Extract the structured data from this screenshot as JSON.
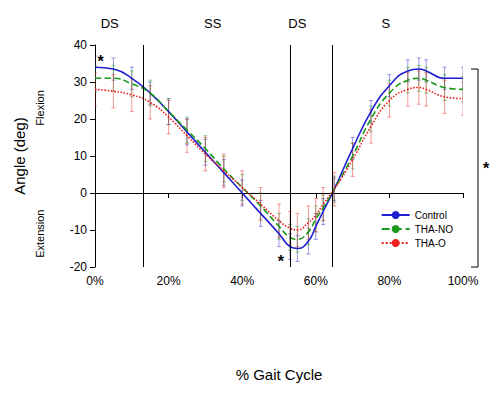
{
  "chart_data": {
    "type": "line",
    "x_label": "% Gait Cycle",
    "y_label": "Angle (deg)",
    "x": [
      0,
      5,
      10,
      15,
      20,
      25,
      30,
      35,
      40,
      45,
      50,
      53,
      55,
      58,
      60,
      62,
      65,
      70,
      75,
      80,
      85,
      88,
      90,
      95,
      100
    ],
    "series": [
      {
        "name": "Control",
        "color": "#1f1fd0",
        "line_style": "solid",
        "values": [
          34,
          33.5,
          31,
          27,
          22,
          16.5,
          11,
          5.5,
          0,
          -5.5,
          -11,
          -14.5,
          -15,
          -13,
          -9,
          -5,
          1,
          12,
          22,
          29,
          33,
          33.5,
          33,
          31,
          31
        ],
        "errors": [
          3,
          3,
          3,
          3,
          3.5,
          3.5,
          3.5,
          3.5,
          3.5,
          3.5,
          3.5,
          3.5,
          3.5,
          3.5,
          3.5,
          3.5,
          3,
          3,
          3,
          3,
          3,
          3,
          3,
          3,
          3
        ]
      },
      {
        "name": "THA-NO",
        "color": "#1a9a1a",
        "line_style": "dashed",
        "values": [
          31,
          31,
          29.5,
          27,
          22,
          17,
          12,
          6.5,
          1.5,
          -3.5,
          -9,
          -12,
          -12.5,
          -10.5,
          -7,
          -4,
          1,
          10,
          20,
          27,
          30.5,
          31,
          30.5,
          28.5,
          28
        ],
        "errors": [
          3.5,
          3.5,
          3.5,
          3.5,
          3.5,
          3.5,
          3.5,
          3.5,
          3.5,
          3.5,
          3.5,
          3.5,
          3.5,
          3.5,
          3.5,
          3.5,
          3.5,
          3.5,
          3.5,
          3.5,
          3.5,
          3.5,
          3.5,
          3.5,
          3.5
        ]
      },
      {
        "name": "THA-O",
        "color": "#ee2020",
        "line_style": "dotted",
        "values": [
          28,
          27.5,
          26.5,
          24.5,
          20.5,
          15.5,
          10.5,
          6,
          1.5,
          -3,
          -7.5,
          -9.5,
          -10,
          -8,
          -6,
          -3,
          1,
          9,
          18,
          25,
          28,
          28.5,
          28,
          26,
          25.5
        ],
        "errors": [
          4.5,
          4.5,
          4.5,
          4.5,
          4.5,
          4.5,
          4.5,
          4.5,
          4.5,
          4.5,
          4.5,
          4.5,
          4.5,
          4.5,
          4.5,
          4.5,
          4.5,
          4.5,
          4.5,
          4.5,
          4.5,
          4.5,
          4.5,
          4.5,
          4.5
        ]
      }
    ],
    "xlim": [
      0,
      100
    ],
    "xticks": [
      {
        "value": 0,
        "label": "0%"
      },
      {
        "value": 20,
        "label": "20%"
      },
      {
        "value": 40,
        "label": "40%"
      },
      {
        "value": 60,
        "label": "60%"
      },
      {
        "value": 80,
        "label": "80%"
      },
      {
        "value": 100,
        "label": "100%"
      }
    ],
    "ylim": [
      -20,
      40
    ],
    "yticks": [
      -20,
      -10,
      0,
      10,
      20,
      30,
      40
    ],
    "grid": false,
    "legend": "lower right",
    "phase_boundaries": [
      13,
      53,
      64.5
    ],
    "phases": [
      {
        "label": "DS",
        "x": 4
      },
      {
        "label": "SS",
        "x": 32
      },
      {
        "label": "DS",
        "x": 55
      },
      {
        "label": "S",
        "x": 79
      }
    ],
    "side_labels": [
      {
        "text": "Flexion",
        "y": 23
      },
      {
        "text": "Extension",
        "y": -11
      }
    ],
    "annotations": [
      {
        "text": "*",
        "x": 1.5,
        "y": 35.5
      },
      {
        "text": "*",
        "x": 50.5,
        "y": -18.5
      }
    ],
    "bracket": {
      "y": [
        33.5,
        -20
      ],
      "text": "*"
    }
  }
}
